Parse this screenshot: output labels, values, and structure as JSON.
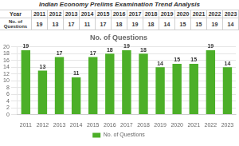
{
  "chart_data": {
    "type": "bar",
    "title": "Indian Economy Prelims Examination Trend Analysis",
    "subtitle": "No. of Questions",
    "annotations": [
      "Year",
      "No. of\nQuestions"
    ],
    "categories": [
      "2011",
      "2012",
      "2013",
      "2014",
      "2015",
      "2016",
      "2017",
      "2018",
      "2019",
      "2020",
      "2021",
      "2022",
      "2023"
    ],
    "series": [
      {
        "name": "No. of Questions",
        "color": "#4caf28",
        "values": [
          19,
          13,
          17,
          11,
          17,
          18,
          19,
          18,
          14,
          15,
          15,
          19,
          14
        ]
      }
    ],
    "ylim": [
      0,
      20
    ],
    "yticks": [
      0,
      2,
      4,
      6,
      8,
      10,
      12,
      14,
      16,
      18,
      20
    ],
    "grid": true,
    "legend": "bottom",
    "data_labels": true
  }
}
